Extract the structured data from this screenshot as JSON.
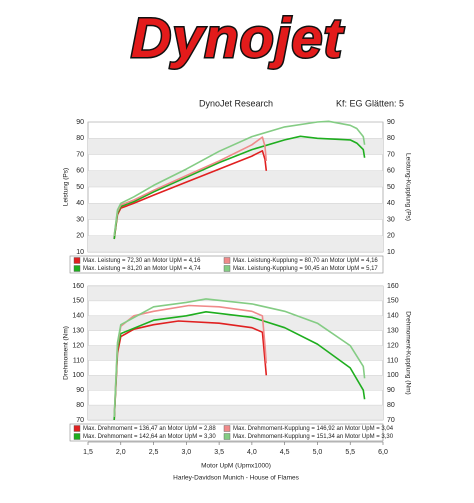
{
  "brand": "Dynojet",
  "header": {
    "title": "DynoJet Research",
    "settings": "Kf: EG Glätten: 5"
  },
  "footer": "Harley-Davidson Munich - House of Flames",
  "chart_data": [
    {
      "type": "line",
      "ylabel": "Leistung (Ps)",
      "y2label": "Leistung-Kupplung (Ps)",
      "xlim": [
        1.5,
        6.0
      ],
      "ylim": [
        10,
        90
      ],
      "yticks": [
        10,
        20,
        30,
        40,
        50,
        60,
        70,
        80,
        90
      ],
      "y2lim": [
        10,
        90
      ],
      "y2ticks": [
        10,
        20,
        30,
        40,
        50,
        60,
        70,
        80,
        90
      ],
      "grid": true,
      "series": [
        {
          "name": "Max. Leistung = 72,30 an Motor UpM = 4,16",
          "color": "#e02020",
          "x": [
            1.9,
            1.95,
            2.0,
            2.2,
            2.5,
            3.0,
            3.5,
            4.0,
            4.16,
            4.2,
            4.22
          ],
          "values": [
            18,
            33,
            37,
            40,
            45,
            53,
            61,
            69,
            72.3,
            67,
            60
          ]
        },
        {
          "name": "Max. Leistung = 81,20 an Motor UpM = 4,74",
          "color": "#1fae1f",
          "x": [
            1.9,
            1.95,
            2.0,
            2.2,
            2.5,
            3.0,
            3.5,
            4.0,
            4.5,
            4.74,
            5.0,
            5.5,
            5.6,
            5.7,
            5.72
          ],
          "values": [
            18,
            34,
            38,
            41,
            47,
            56,
            65,
            73,
            79,
            81.2,
            80,
            79,
            77,
            73,
            68
          ]
        },
        {
          "name": "Max. Leistung-Kupplung = 80,70 an Motor UpM = 4,16",
          "color": "#f08a8a",
          "axis": "y2",
          "x": [
            1.9,
            1.95,
            2.0,
            2.2,
            2.5,
            3.0,
            3.5,
            4.0,
            4.16,
            4.2,
            4.22
          ],
          "values": [
            20,
            35,
            39,
            42,
            48,
            57,
            66,
            76,
            80.7,
            75,
            66
          ]
        },
        {
          "name": "Max. Leistung-Kupplung = 90,45 an Motor UpM = 5,17",
          "color": "#84cc84",
          "axis": "y2",
          "x": [
            1.9,
            1.95,
            2.0,
            2.2,
            2.5,
            3.0,
            3.5,
            4.0,
            4.5,
            5.0,
            5.17,
            5.5,
            5.6,
            5.7,
            5.72
          ],
          "values": [
            20,
            36,
            40,
            44,
            51,
            61,
            72,
            81,
            87,
            90,
            90.45,
            88,
            86,
            81,
            76
          ]
        }
      ]
    },
    {
      "type": "line",
      "ylabel": "Drehmoment (Nm)",
      "y2label": "Drehmoment-Kupplung (Nm)",
      "xlabel": "Motor UpM (Upmx1000)",
      "xlim": [
        1.5,
        6.0
      ],
      "xticks": [
        {
          "value": 1.5,
          "label": "1,5"
        },
        {
          "value": 2.0,
          "label": "2,0"
        },
        {
          "value": 2.5,
          "label": "2,5"
        },
        {
          "value": 3.0,
          "label": "3,0"
        },
        {
          "value": 3.5,
          "label": "3,5"
        },
        {
          "value": 4.0,
          "label": "4,0"
        },
        {
          "value": 4.5,
          "label": "4,5"
        },
        {
          "value": 5.0,
          "label": "5,0"
        },
        {
          "value": 5.5,
          "label": "5,5"
        },
        {
          "value": 6.0,
          "label": "6,0"
        }
      ],
      "ylim": [
        70,
        160
      ],
      "yticks": [
        70,
        80,
        90,
        100,
        110,
        120,
        130,
        140,
        150,
        160
      ],
      "y2lim": [
        70,
        160
      ],
      "y2ticks": [
        70,
        80,
        90,
        100,
        110,
        120,
        130,
        140,
        150,
        160
      ],
      "grid": true,
      "series": [
        {
          "name": "Max. Drehmoment = 136,47 an Motor UpM = 2,88",
          "color": "#e02020",
          "x": [
            1.9,
            1.95,
            2.0,
            2.2,
            2.5,
            2.88,
            3.5,
            4.0,
            4.16,
            4.2,
            4.22
          ],
          "values": [
            70,
            115,
            126,
            131,
            134,
            136.47,
            135,
            132,
            129,
            110,
            100
          ]
        },
        {
          "name": "Max. Drehmoment = 142,64 an Motor UpM = 3,30",
          "color": "#1fae1f",
          "x": [
            1.9,
            1.95,
            2.0,
            2.5,
            3.0,
            3.3,
            4.0,
            4.5,
            5.0,
            5.5,
            5.7,
            5.72
          ],
          "values": [
            70,
            118,
            128,
            137,
            140,
            142.64,
            139,
            132,
            121,
            105,
            90,
            84
          ]
        },
        {
          "name": "Max. Drehmoment-Kupplung = 146,92 an Motor UpM = 3,04",
          "color": "#f08a8a",
          "axis": "y2",
          "x": [
            1.9,
            1.95,
            2.0,
            2.2,
            2.5,
            3.04,
            3.5,
            4.0,
            4.16,
            4.2,
            4.22
          ],
          "values": [
            72,
            120,
            133,
            140,
            143,
            146.92,
            146,
            143,
            140,
            120,
            108
          ]
        },
        {
          "name": "Max. Drehmoment-Kupplung = 151,34 an Motor UpM = 3,30",
          "color": "#84cc84",
          "axis": "y2",
          "x": [
            1.9,
            1.95,
            2.0,
            2.5,
            3.0,
            3.3,
            4.0,
            4.5,
            5.0,
            5.5,
            5.7,
            5.72
          ],
          "values": [
            72,
            122,
            134,
            146,
            149,
            151.34,
            148,
            143,
            135,
            120,
            106,
            98
          ]
        }
      ]
    }
  ]
}
